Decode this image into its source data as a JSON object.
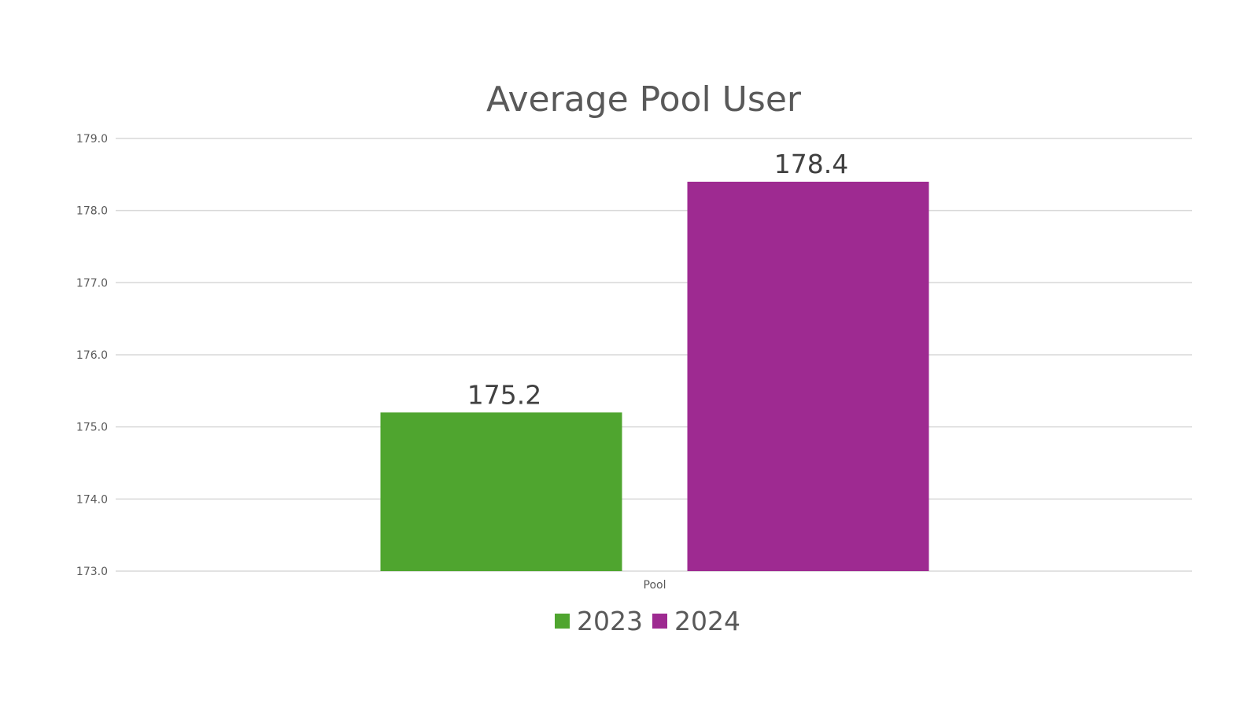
{
  "chart_data": {
    "type": "bar",
    "title": "Average Pool User",
    "xlabel": "",
    "ylabel": "",
    "categories": [
      "Pool"
    ],
    "series": [
      {
        "name": "2023",
        "values": [
          175.2
        ],
        "color": "#4fa52f"
      },
      {
        "name": "2024",
        "values": [
          178.4
        ],
        "color": "#9e2a91"
      }
    ],
    "ylim": [
      173.0,
      179.0
    ],
    "y_ticks": [
      "173.0",
      "174.0",
      "175.0",
      "176.0",
      "177.0",
      "178.0",
      "179.0"
    ],
    "grid": true,
    "legend": "bottom",
    "data_labels": [
      "175.2",
      "178.4"
    ]
  }
}
